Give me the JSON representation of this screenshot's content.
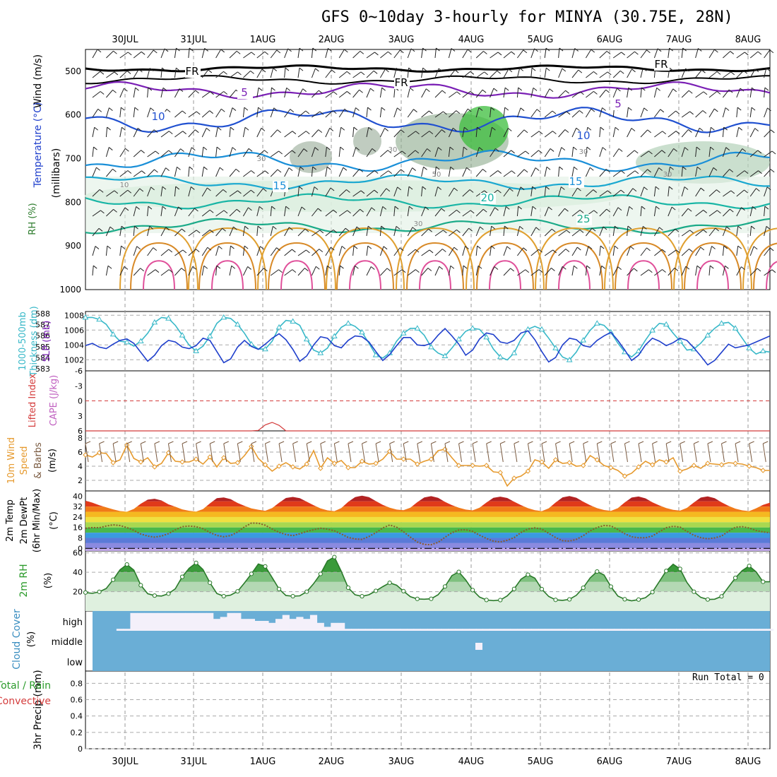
{
  "title": "GFS 0~10day 3-hourly for MINYA (30.75E, 28N)",
  "date_labels": [
    "30JUL",
    "31JUL",
    "1AUG",
    "2AUG",
    "3AUG",
    "4AUG",
    "5AUG",
    "6AUG",
    "7AUG",
    "8AUG"
  ],
  "run_total": "Run Total = 0",
  "panel_labels": {
    "upper_wind": "Wind (m/s)",
    "upper_temp": "Temperature (°C)",
    "upper_rh": "RH (%)",
    "upper_p": "(millibars)",
    "thick": "Thickness (dm)",
    "thick2": "1000-500mb",
    "slp": "SLP (mb)",
    "li": "Lifted Index",
    "cape": "CAPE (J/kg)",
    "wind10": "10m Wind",
    "wind10b": "Speed",
    "wind10c": "& Barbs",
    "wind10u": "(m/s)",
    "t2m": "2m Temp",
    "t2mb": "2m DewPt",
    "t2mc": "(6hr Min/Max)",
    "t2mu": "(°C)",
    "rh2m": "2m RH",
    "rh2mu": "(%)",
    "cloud": "Cloud Cover",
    "cloudu": "(%)",
    "precip1": "Total / Rain",
    "precip2": "Convective",
    "precip3": "3hr Precip (mm)"
  },
  "colors": {
    "slp": "#1f3fcc",
    "thickness": "#38b8c8",
    "wind10": "#e69a2e",
    "rh": "#3a9a3a",
    "cloud": "#6aaed6",
    "cloud_clear": "#f4f0fa",
    "li": "#d43c3c"
  },
  "chart_data": [
    {
      "type": "contour",
      "panel": "upper_air",
      "ylabel": "(millibars)",
      "y_ticks": [
        500,
        600,
        700,
        800,
        900,
        1000
      ],
      "contour_labels": [
        "FR",
        "FR",
        "FR",
        "5",
        "5",
        "10",
        "10",
        "15",
        "15",
        "20",
        "25"
      ],
      "rh_labels": [
        "30",
        "30",
        "50",
        "30",
        "10",
        "30",
        "30"
      ]
    },
    {
      "type": "line",
      "panel": "slp_thickness",
      "y_left_ticks": [
        583,
        584,
        585,
        586,
        587,
        588
      ],
      "y_right_ticks": [
        1002,
        1004,
        1006,
        1008
      ],
      "series": [
        {
          "name": "SLP",
          "values": [
            1003.9,
            1004.2,
            1003.7,
            1003.5,
            1004.1,
            1004.6,
            1004.8,
            1004.2,
            1003.0,
            1001.8,
            1002.6,
            1003.9,
            1004.6,
            1004.4,
            1003.7,
            1003.5,
            1003.9,
            1004.9,
            1004.6,
            1003.1,
            1001.6,
            1002.1,
            1003.7,
            1004.6,
            1003.8,
            1003.4,
            1004.1,
            1004.9,
            1005.5,
            1004.7,
            1003.4,
            1001.8,
            1002.5,
            1004.0,
            1005.1,
            1004.9,
            1003.9,
            1003.6,
            1004.6,
            1005.2,
            1005.1,
            1004.4,
            1003.1,
            1001.9,
            1002.7,
            1003.9,
            1005.0,
            1005.0,
            1004.0,
            1003.9,
            1004.2,
            1005.3,
            1006.2,
            1005.2,
            1004.1,
            1002.6,
            1003.3,
            1004.8,
            1005.6,
            1005.4,
            1004.4,
            1004.2,
            1004.6,
            1005.6,
            1005.9,
            1004.7,
            1003.1,
            1001.7,
            1002.3,
            1004.0,
            1004.9,
            1004.7,
            1003.9,
            1003.7,
            1004.6,
            1005.2,
            1005.7,
            1004.6,
            1003.3,
            1001.9,
            1002.6,
            1004.0,
            1004.9,
            1004.5,
            1003.9,
            1004.3,
            1004.9,
            1004.6,
            1003.6,
            1002.5,
            1001.3,
            1001.9,
            1003.0,
            1004.1,
            1003.6,
            1003.8,
            1004.0,
            1004.4,
            1004.8,
            1005.2
          ]
        },
        {
          "name": "Thickness",
          "values": [
            587.9,
            587.9,
            587.7,
            587.2,
            586.2,
            585.5,
            585.4,
            585.0,
            585.5,
            586.3,
            587.4,
            587.9,
            587.8,
            587.1,
            586.1,
            585.1,
            584.5,
            585.0,
            586.0,
            587.3,
            587.9,
            587.8,
            587.2,
            586.3,
            585.2,
            584.7,
            584.7,
            585.5,
            586.9,
            587.6,
            587.5,
            587.1,
            585.7,
            584.6,
            584.3,
            584.8,
            586.0,
            586.9,
            587.3,
            587.0,
            586.4,
            585.3,
            584.1,
            583.8,
            584.3,
            585.5,
            586.3,
            586.8,
            586.8,
            586.1,
            584.9,
            584.3,
            584.0,
            584.8,
            585.7,
            586.5,
            586.8,
            586.7,
            585.9,
            584.7,
            583.9,
            583.6,
            584.3,
            585.7,
            586.7,
            587.0,
            586.7,
            585.8,
            584.8,
            583.9,
            583.6,
            584.4,
            585.6,
            586.6,
            587.3,
            587.1,
            586.4,
            585.3,
            584.4,
            583.9,
            584.5,
            585.6,
            586.6,
            587.3,
            587.2,
            586.3,
            585.5,
            584.6,
            584.7,
            585.3,
            586.1,
            586.8,
            587.3,
            587.4,
            586.8,
            585.8,
            584.8,
            584.2,
            584.5,
            584.4
          ]
        }
      ]
    },
    {
      "type": "line",
      "panel": "lifted_index_cape",
      "y_ticks": [
        6,
        3,
        0,
        -3,
        -6
      ],
      "series": [
        {
          "name": "Lifted Index",
          "values": [
            6.6,
            6.6,
            6.6,
            6.6,
            6.6,
            6.6,
            6.6,
            6.6,
            6.6,
            6.6,
            6.6,
            6.6,
            6.6,
            6.6,
            6.6,
            6.6,
            6.6,
            6.6,
            6.6,
            6.6,
            6.6,
            6.6,
            6.6,
            6.6,
            6.6,
            5.9,
            4.8,
            4.3,
            4.9,
            6.3,
            6.6,
            6.6,
            6.6,
            6.6,
            6.6,
            6.6,
            6.6,
            6.6,
            6.6,
            6.6,
            6.6,
            6.6,
            6.6,
            6.6,
            6.6,
            6.6,
            6.6,
            6.6,
            6.6,
            6.6,
            6.6,
            6.6,
            6.6,
            6.6,
            6.6,
            6.6,
            6.6,
            6.6,
            6.6,
            6.6,
            6.6,
            6.6,
            6.6,
            6.6,
            6.6,
            6.6,
            6.6,
            6.6,
            6.6,
            6.6,
            6.6,
            6.6,
            6.6,
            6.6,
            6.6,
            6.6,
            6.6,
            6.6,
            6.6,
            6.6,
            6.6,
            6.6,
            6.6,
            6.6,
            6.6,
            6.6,
            6.6,
            6.6,
            6.6,
            6.6,
            6.6,
            6.6,
            6.6,
            6.6,
            6.6,
            6.6,
            6.6,
            6.6,
            6.6,
            6.6
          ]
        }
      ]
    },
    {
      "type": "line",
      "panel": "wind10",
      "y_ticks": [
        2,
        4,
        6,
        8
      ],
      "series": [
        {
          "name": "10m Wind Speed",
          "values": [
            5.6,
            5.3,
            5.9,
            5.8,
            4.5,
            4.9,
            7.0,
            5.1,
            4.6,
            5.2,
            3.9,
            4.4,
            5.9,
            4.7,
            4.6,
            4.6,
            5.0,
            4.3,
            5.3,
            3.9,
            5.2,
            4.4,
            4.5,
            5.5,
            6.8,
            5.1,
            4.2,
            3.3,
            4.0,
            4.5,
            3.9,
            3.6,
            4.3,
            6.2,
            3.7,
            5.2,
            4.4,
            4.8,
            3.8,
            3.8,
            4.7,
            4.3,
            4.4,
            5.0,
            6.1,
            5.0,
            5.0,
            5.0,
            4.3,
            4.7,
            5.0,
            6.2,
            6.4,
            5.2,
            4.1,
            4.1,
            4.1,
            4.0,
            4.1,
            3.2,
            3.1,
            1.2,
            2.3,
            2.6,
            3.3,
            4.9,
            4.6,
            3.7,
            4.9,
            4.4,
            4.5,
            4.0,
            4.1,
            5.5,
            4.9,
            4.1,
            3.8,
            3.4,
            2.6,
            3.0,
            3.9,
            4.7,
            4.2,
            4.9,
            4.6,
            5.2,
            3.3,
            3.6,
            4.1,
            3.7,
            4.4,
            4.3,
            4.2,
            4.5,
            4.4,
            4.3,
            4.0,
            3.8,
            3.4,
            3.4
          ]
        }
      ]
    },
    {
      "type": "line",
      "panel": "t2m",
      "y_ticks": [
        0,
        8,
        16,
        24,
        32,
        40
      ],
      "series": [
        {
          "name": "2m Temp",
          "values": [
            36.6,
            35.0,
            33.0,
            31.4,
            29.9,
            28.6,
            28.1,
            30.2,
            34.2,
            37.3,
            38.0,
            36.7,
            33.7,
            31.9,
            29.9,
            28.8,
            28.2,
            30.1,
            34.5,
            38.4,
            39.0,
            37.7,
            34.8,
            32.6,
            30.6,
            29.6,
            28.8,
            30.9,
            34.9,
            38.6,
            39.4,
            38.5,
            35.7,
            33.0,
            30.6,
            29.1,
            28.5,
            30.9,
            35.6,
            39.3,
            40.4,
            39.3,
            36.2,
            33.3,
            31.2,
            29.7,
            29.2,
            31.2,
            35.4,
            39.0,
            40.0,
            38.7,
            35.6,
            33.1,
            31.1,
            29.7,
            29.1,
            31.1,
            35.1,
            38.7,
            39.6,
            38.6,
            35.7,
            33.1,
            30.8,
            29.3,
            28.5,
            30.7,
            35.1,
            39.1,
            40.1,
            38.8,
            35.7,
            33.0,
            30.8,
            29.4,
            28.7,
            30.8,
            35.2,
            38.9,
            39.7,
            38.3,
            35.3,
            32.9,
            30.9,
            29.5,
            28.9,
            31.0,
            35.1,
            38.9,
            39.8,
            38.4,
            35.3,
            32.6,
            30.4,
            29.1,
            28.5,
            30.7,
            33.3,
            35.0
          ]
        },
        {
          "name": "2m DewPt",
          "values": [
            15.3,
            15.9,
            15.8,
            17.1,
            18.0,
            17.5,
            15.9,
            13.8,
            11.0,
            9.4,
            8.6,
            9.4,
            11.3,
            14.2,
            16.6,
            17.1,
            16.6,
            15.0,
            12.2,
            9.9,
            8.9,
            9.8,
            12.5,
            16.4,
            19.4,
            19.3,
            17.7,
            14.8,
            12.3,
            10.6,
            9.7,
            11.2,
            13.0,
            14.3,
            15.4,
            14.7,
            13.5,
            11.0,
            8.4,
            7.2,
            6.9,
            9.1,
            12.0,
            15.6,
            17.9,
            16.2,
            12.8,
            8.6,
            4.9,
            3.0,
            2.8,
            4.6,
            8.5,
            12.0,
            14.0,
            14.3,
            13.0,
            10.1,
            7.6,
            5.5,
            4.9,
            6.2,
            8.2,
            12.2,
            14.8,
            15.7,
            14.7,
            11.6,
            8.3,
            5.9,
            5.6,
            6.9,
            9.7,
            13.4,
            16.0,
            17.5,
            17.2,
            14.4,
            11.2,
            8.9,
            8.1,
            8.1,
            9.5,
            12.7,
            15.8,
            16.9,
            16.3,
            13.0,
            10.0,
            8.2,
            7.3,
            8.0,
            9.5,
            13.1,
            16.2,
            16.6,
            15.6,
            13.7,
            12.6,
            12.0
          ]
        }
      ]
    },
    {
      "type": "area",
      "panel": "rh2m",
      "y_ticks": [
        20,
        40,
        60
      ],
      "series": [
        {
          "name": "2m RH",
          "values": [
            19.1,
            18.2,
            19.8,
            23.3,
            32.3,
            42.5,
            48.1,
            42.2,
            26.6,
            17.9,
            15.9,
            15.5,
            17.9,
            23.0,
            35.3,
            44.1,
            49.7,
            42.8,
            29.2,
            18.1,
            15.3,
            16.4,
            20.3,
            29.0,
            38.4,
            48.6,
            46.1,
            34.5,
            22.7,
            16.0,
            15.3,
            15.7,
            19.9,
            28.2,
            38.3,
            51.7,
            55.7,
            40.9,
            24.1,
            16.8,
            15.2,
            16.8,
            20.8,
            25.2,
            29.1,
            26.6,
            20.5,
            14.7,
            12.5,
            12.2,
            12.6,
            16.8,
            25.3,
            36.6,
            40.4,
            32.1,
            21.6,
            14.4,
            11.4,
            10.7,
            11.3,
            15.6,
            22.8,
            32.8,
            37.5,
            33.9,
            22.6,
            15.0,
            11.5,
            11.0,
            12.0,
            16.2,
            24.0,
            34.2,
            40.8,
            37.2,
            25.2,
            15.4,
            12.1,
            10.6,
            11.8,
            13.8,
            19.5,
            30.4,
            41.4,
            48.3,
            43.5,
            29.5,
            19.9,
            14.1,
            11.9,
            12.2,
            15.1,
            24.7,
            34.2,
            41.7,
            46.5,
            40.4,
            30.2,
            30.2
          ]
        }
      ]
    },
    {
      "type": "bar",
      "panel": "cloud",
      "y_ticks": [
        "high",
        "middle",
        "low"
      ],
      "series": [
        {
          "name": "High Cloud Fraction",
          "values": [
            0,
            0,
            0,
            0,
            0,
            0.1,
            0.1,
            0.9,
            0.9,
            0.9,
            0.9,
            0.9,
            0.9,
            0.9,
            0.9,
            0.9,
            0.9,
            0.9,
            0.9,
            0.6,
            0.7,
            0.9,
            0.9,
            0.6,
            0.6,
            0.5,
            0.5,
            0.4,
            0.6,
            0.8,
            0.6,
            0.7,
            0.6,
            0.8,
            0.4,
            0.2,
            0.4,
            0.4,
            0.1,
            0.1,
            0.1,
            0.1,
            0.1,
            0.1,
            0.1,
            0.1,
            0.1,
            0.1,
            0.1,
            0.1,
            0.1,
            0.1,
            0.1,
            0.1,
            0.1,
            0.1,
            0.1,
            0.1,
            0.1,
            0.1,
            0.1,
            0.1,
            0.1,
            0.1,
            0.1,
            0.1,
            0.1,
            0.1,
            0.1,
            0.1,
            0.1,
            0.1,
            0.1,
            0.1,
            0.1,
            0.1,
            0.1,
            0.1,
            0.1,
            0.1,
            0.1,
            0.1,
            0.1,
            0.1,
            0.1,
            0.1,
            0.1,
            0.1,
            0.1,
            0.1,
            0.1,
            0.1,
            0.1,
            0.1,
            0.1,
            0.1,
            0.1,
            0.1,
            0.1,
            0.1
          ]
        }
      ]
    },
    {
      "type": "bar",
      "panel": "precip",
      "y_ticks": [
        0,
        0.2,
        0.4,
        0.6,
        0.8
      ],
      "series": [
        {
          "name": "3hr Precip",
          "values": [
            0,
            0,
            0,
            0,
            0,
            0,
            0,
            0,
            0,
            0
          ]
        }
      ]
    }
  ]
}
